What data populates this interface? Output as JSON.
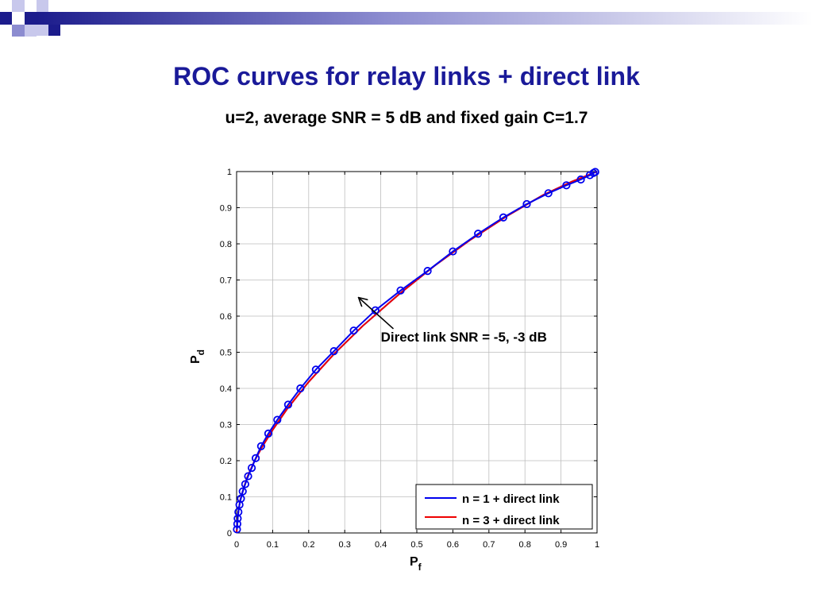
{
  "slide": {
    "title": "ROC curves for relay links + direct link",
    "subtitle": "u=2, average SNR = 5 dB and fixed gain C=1.7"
  },
  "chart_data": {
    "type": "line",
    "xlabel": "P",
    "xlabel_sub": "f",
    "ylabel": "P",
    "ylabel_sub": "d",
    "xlim": [
      0,
      1
    ],
    "ylim": [
      0,
      1
    ],
    "x_ticks": [
      "0",
      "0.1",
      "0.2",
      "0.3",
      "0.4",
      "0.5",
      "0.6",
      "0.7",
      "0.8",
      "0.9",
      "1"
    ],
    "y_ticks": [
      "0",
      "0.1",
      "0.2",
      "0.3",
      "0.4",
      "0.5",
      "0.6",
      "0.7",
      "0.8",
      "0.9",
      "1"
    ],
    "grid": true,
    "legend_position": "bottom-right",
    "series": [
      {
        "name": "n = 1 + direct link",
        "color": "#0000ee",
        "marker": "none",
        "x": [
          0,
          0.002,
          0.005,
          0.01,
          0.02,
          0.03,
          0.05,
          0.07,
          0.1,
          0.14,
          0.2,
          0.27,
          0.35,
          0.45,
          0.55,
          0.65,
          0.75,
          0.85,
          0.93,
          1.0
        ],
        "y": [
          0,
          0.03,
          0.06,
          0.09,
          0.125,
          0.155,
          0.2,
          0.237,
          0.285,
          0.343,
          0.418,
          0.495,
          0.573,
          0.66,
          0.74,
          0.812,
          0.877,
          0.935,
          0.972,
          1.0
        ]
      },
      {
        "name": "n = 3 + direct link",
        "color": "#ee0000",
        "marker": "none",
        "x": [
          0,
          0.002,
          0.005,
          0.01,
          0.02,
          0.03,
          0.05,
          0.07,
          0.1,
          0.14,
          0.2,
          0.27,
          0.35,
          0.45,
          0.55,
          0.65,
          0.75,
          0.85,
          0.93,
          1.0
        ],
        "y": [
          0,
          0.03,
          0.06,
          0.09,
          0.125,
          0.155,
          0.2,
          0.237,
          0.285,
          0.343,
          0.418,
          0.495,
          0.573,
          0.66,
          0.74,
          0.812,
          0.877,
          0.935,
          0.972,
          1.0
        ]
      },
      {
        "name": "",
        "color": "#0000ee",
        "marker": "circle",
        "x": [
          0.001,
          0.002,
          0.003,
          0.005,
          0.008,
          0.012,
          0.017,
          0.024,
          0.032,
          0.042,
          0.053,
          0.068,
          0.088,
          0.113,
          0.143,
          0.177,
          0.22,
          0.27,
          0.325,
          0.385,
          0.455,
          0.53,
          0.6,
          0.67,
          0.74,
          0.805,
          0.865,
          0.915,
          0.955,
          0.98,
          0.99,
          0.995
        ],
        "y": [
          0.01,
          0.025,
          0.04,
          0.058,
          0.078,
          0.095,
          0.115,
          0.135,
          0.157,
          0.18,
          0.207,
          0.24,
          0.275,
          0.313,
          0.355,
          0.4,
          0.452,
          0.503,
          0.56,
          0.616,
          0.671,
          0.725,
          0.779,
          0.828,
          0.873,
          0.91,
          0.94,
          0.962,
          0.978,
          0.99,
          0.996,
          0.999
        ]
      }
    ],
    "annotations": [
      {
        "text": "Direct link SNR = -5, -3 dB",
        "arrow_to": [
          0.34,
          0.65
        ],
        "arrow_from": [
          0.435,
          0.565
        ],
        "text_at": [
          0.4,
          0.53
        ]
      }
    ]
  },
  "style": {
    "title_color": "#1a1a99",
    "deco_colors": [
      "#1c1c8c",
      "#8c8cd0",
      "#c8c8ec"
    ]
  }
}
